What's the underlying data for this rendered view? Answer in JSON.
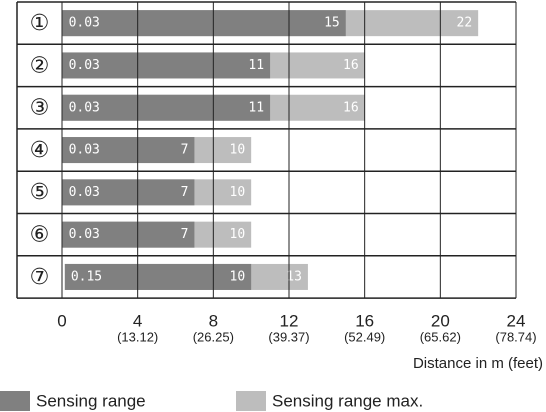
{
  "chart_data": {
    "type": "range-bar",
    "categories": [
      "①",
      "②",
      "③",
      "④",
      "⑤",
      "⑥",
      "⑦"
    ],
    "min_values": [
      0.03,
      0.03,
      0.03,
      0.03,
      0.03,
      0.03,
      0.15
    ],
    "series": [
      {
        "name": "Sensing range",
        "color": "#808080",
        "values": [
          15,
          11,
          11,
          7,
          7,
          7,
          10
        ]
      },
      {
        "name": "Sensing range max.",
        "color": "#bdbdbd",
        "values": [
          22,
          16,
          16,
          10,
          10,
          10,
          13
        ]
      }
    ],
    "xlim": [
      0,
      24
    ],
    "xticks": [
      0,
      4,
      8,
      12,
      16,
      20,
      24
    ],
    "xtick_sublabels": [
      null,
      "(13.12)",
      "(26.25)",
      "(39.37)",
      "(52.49)",
      "(65.62)",
      "(78.74)"
    ],
    "xlabel": "Distance in m (feet)",
    "grid": true
  }
}
